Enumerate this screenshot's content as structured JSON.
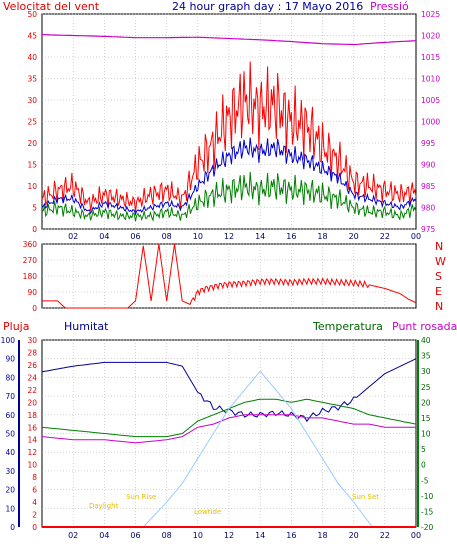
{
  "header": {
    "wind_label": "Velocitat del vent",
    "title": "24 hour graph day : 17 Mayo 2016",
    "pressure_label": "Pressió"
  },
  "direction_labels": [
    "N",
    "W",
    "S",
    "E",
    "N"
  ],
  "lower_labels": {
    "rain": "Pluja",
    "humidity": "Humitat",
    "temperature": "Temperatura",
    "dew": "Punt rosada"
  },
  "sun_labels": {
    "daylight": "Daylight",
    "sun_rise": "Sun Rise",
    "lowtide": "Lowtide",
    "sun_set": "Sun Set"
  },
  "colors": {
    "wind_gust": "#ff0000",
    "wind_avg": "#0000cc",
    "wind_min": "#008000",
    "pressure": "#cc00cc",
    "humidity": "#000099",
    "temperature": "#008000",
    "dew": "#cc00cc",
    "sun": "#99ccff",
    "rain": "#ff0000"
  },
  "chart_data": [
    {
      "type": "line",
      "name": "wind",
      "x_ticks": [
        "02",
        "04",
        "06",
        "08",
        "10",
        "12",
        "14",
        "16",
        "18",
        "20",
        "22",
        "00"
      ],
      "y_ticks": [
        0,
        5,
        10,
        15,
        20,
        25,
        30,
        35,
        40,
        45,
        50
      ],
      "ylim": [
        0,
        50
      ],
      "y2_ticks": [
        975,
        980,
        985,
        990,
        995,
        1000,
        1005,
        1010,
        1015,
        1020,
        1025
      ],
      "y2lim": [
        975,
        1025
      ],
      "series": [
        {
          "name": "gust",
          "axis": "left",
          "x": [
            0,
            1,
            2,
            3,
            4,
            5,
            6,
            7,
            8,
            9,
            10,
            11,
            12,
            13,
            14,
            15,
            16,
            17,
            18,
            19,
            20,
            21,
            22,
            23,
            24
          ],
          "values": [
            7,
            9,
            10,
            6,
            8,
            7,
            6,
            8,
            9,
            7,
            15,
            20,
            26,
            30,
            28,
            29,
            25,
            24,
            19,
            16,
            11,
            10,
            9,
            8,
            9
          ]
        },
        {
          "name": "average",
          "axis": "left",
          "x": [
            0,
            1,
            2,
            3,
            4,
            5,
            6,
            7,
            8,
            9,
            10,
            11,
            12,
            13,
            14,
            15,
            16,
            17,
            18,
            19,
            20,
            21,
            22,
            23,
            24
          ],
          "values": [
            5,
            7,
            7,
            4,
            6,
            5,
            4,
            5,
            6,
            5,
            10,
            14,
            17,
            19,
            18,
            19,
            17,
            16,
            14,
            12,
            8,
            7,
            6,
            5,
            7
          ]
        },
        {
          "name": "minimum",
          "axis": "left",
          "x": [
            0,
            1,
            2,
            3,
            4,
            5,
            6,
            7,
            8,
            9,
            10,
            11,
            12,
            13,
            14,
            15,
            16,
            17,
            18,
            19,
            20,
            21,
            22,
            23,
            24
          ],
          "values": [
            4,
            5,
            4,
            3,
            4,
            3,
            3,
            3,
            4,
            3,
            6,
            8,
            9,
            10,
            9,
            10,
            9,
            9,
            8,
            7,
            5,
            4,
            4,
            3,
            5
          ]
        },
        {
          "name": "pressure",
          "axis": "right",
          "x": [
            0,
            2,
            4,
            6,
            8,
            10,
            12,
            14,
            16,
            18,
            20,
            22,
            24
          ],
          "values": [
            1020.2,
            1020.0,
            1019.8,
            1019.5,
            1019.5,
            1019.6,
            1019.3,
            1019.0,
            1018.6,
            1018.1,
            1017.9,
            1018.4,
            1018.8
          ]
        }
      ]
    },
    {
      "type": "line",
      "name": "wind_direction",
      "y_ticks": [
        0,
        90,
        180,
        270,
        360
      ],
      "ylim": [
        0,
        360
      ],
      "series": [
        {
          "name": "direction",
          "x": [
            0,
            0.5,
            1,
            1.5,
            2,
            2.5,
            3,
            3.5,
            4,
            4.5,
            5,
            5.5,
            6,
            6.5,
            7,
            7.5,
            8,
            8.5,
            9,
            9.5,
            10,
            10.5,
            11,
            11.5,
            12,
            13,
            14,
            15,
            16,
            17,
            18,
            19,
            20,
            21,
            22,
            23,
            23.5,
            24
          ],
          "values": [
            40,
            40,
            40,
            0,
            0,
            0,
            0,
            0,
            0,
            0,
            0,
            0,
            40,
            350,
            40,
            360,
            40,
            360,
            40,
            20,
            90,
            110,
            120,
            130,
            135,
            140,
            150,
            150,
            145,
            150,
            150,
            145,
            140,
            130,
            110,
            80,
            50,
            30
          ]
        }
      ]
    },
    {
      "type": "line",
      "name": "humidity_temperature",
      "x_ticks": [
        "02",
        "04",
        "06",
        "08",
        "10",
        "12",
        "14",
        "16",
        "18",
        "20",
        "22",
        "00"
      ],
      "y_ticks_humidity": [
        0,
        10,
        20,
        30,
        40,
        50,
        60,
        70,
        80,
        90,
        100
      ],
      "ylim_humidity": [
        0,
        100
      ],
      "y_ticks_rain": [
        0,
        2,
        4,
        6,
        8,
        10,
        12,
        14,
        16,
        18,
        20,
        22,
        24,
        26,
        28,
        30
      ],
      "ylim_rain": [
        0,
        30
      ],
      "y_ticks_temperature": [
        -20,
        -15,
        -10,
        -5,
        0,
        5,
        10,
        15,
        20,
        25,
        30,
        35,
        40
      ],
      "ylim_temperature": [
        -20,
        40
      ],
      "series": [
        {
          "name": "humidity",
          "axis": "humidity",
          "x": [
            0,
            2,
            4,
            6,
            8,
            9,
            10,
            11,
            12,
            13,
            14,
            15,
            16,
            17,
            18,
            19,
            20,
            21,
            22,
            23,
            24
          ],
          "values": [
            83,
            86,
            88,
            88,
            88,
            86,
            72,
            64,
            62,
            60,
            60,
            61,
            60,
            58,
            62,
            64,
            68,
            75,
            82,
            86,
            90
          ]
        },
        {
          "name": "temperature",
          "axis": "temperature",
          "x": [
            0,
            2,
            4,
            6,
            8,
            9,
            10,
            11,
            12,
            13,
            14,
            15,
            16,
            17,
            18,
            19,
            20,
            21,
            22,
            23,
            24
          ],
          "values": [
            12,
            11,
            10,
            9,
            9,
            10,
            14,
            16,
            18,
            20,
            21,
            21,
            20,
            21,
            20,
            19,
            18,
            16,
            15,
            14,
            13
          ]
        },
        {
          "name": "dew_point",
          "axis": "temperature",
          "x": [
            0,
            2,
            4,
            6,
            8,
            9,
            10,
            11,
            12,
            13,
            14,
            15,
            16,
            17,
            18,
            19,
            20,
            21,
            22,
            23,
            24
          ],
          "values": [
            9,
            8,
            8,
            7,
            8,
            9,
            12,
            13,
            15,
            16,
            16,
            16,
            16,
            15,
            15,
            14,
            13,
            13,
            12,
            12,
            12
          ]
        },
        {
          "name": "sun",
          "axis": "temperature",
          "x": [
            6.5,
            8,
            9,
            10,
            11,
            12,
            13,
            14,
            15,
            16,
            17,
            18,
            19,
            20,
            21.2
          ],
          "values": [
            -20,
            -12,
            -6,
            2,
            10,
            18,
            24,
            30,
            24,
            18,
            10,
            2,
            -6,
            -12,
            -20
          ]
        },
        {
          "name": "rain",
          "axis": "rain",
          "x": [
            0,
            24
          ],
          "values": [
            0,
            0
          ]
        }
      ]
    }
  ]
}
